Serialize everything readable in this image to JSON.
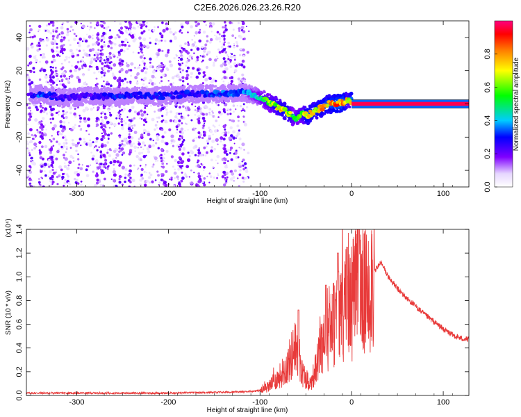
{
  "title": "C2E6.2026.026.23.26.R20",
  "chart_data": [
    {
      "type": "heatmap",
      "xlabel": "Height of straight line (km)",
      "ylabel": "Frequency (Hz)",
      "xlim": [
        -355,
        128
      ],
      "ylim": [
        -50,
        50
      ],
      "xticks": [
        -300,
        -200,
        -100,
        0,
        100
      ],
      "yticks": [
        -40,
        -20,
        0,
        20,
        40
      ],
      "noise_region_x": [
        -355,
        -112
      ],
      "ridge": [
        {
          "x": -350,
          "y": 5,
          "amp": 0.25
        },
        {
          "x": -340,
          "y": 6,
          "amp": 0.35
        },
        {
          "x": -330,
          "y": 5,
          "amp": 0.3
        },
        {
          "x": -320,
          "y": 4,
          "amp": 0.25
        },
        {
          "x": -300,
          "y": 4,
          "amp": 0.25
        },
        {
          "x": -280,
          "y": 5,
          "amp": 0.25
        },
        {
          "x": -260,
          "y": 4,
          "amp": 0.3
        },
        {
          "x": -240,
          "y": 5,
          "amp": 0.3
        },
        {
          "x": -220,
          "y": 5,
          "amp": 0.3
        },
        {
          "x": -200,
          "y": 5,
          "amp": 0.3
        },
        {
          "x": -180,
          "y": 6,
          "amp": 0.3
        },
        {
          "x": -160,
          "y": 6,
          "amp": 0.3
        },
        {
          "x": -140,
          "y": 6,
          "amp": 0.35
        },
        {
          "x": -120,
          "y": 7,
          "amp": 0.35
        },
        {
          "x": -110,
          "y": 6,
          "amp": 0.45
        },
        {
          "x": -100,
          "y": 4,
          "amp": 0.5
        },
        {
          "x": -90,
          "y": 1,
          "amp": 0.6
        },
        {
          "x": -80,
          "y": -2,
          "amp": 0.7
        },
        {
          "x": -70,
          "y": -5,
          "amp": 0.75
        },
        {
          "x": -62,
          "y": -9,
          "amp": 0.55
        },
        {
          "x": -55,
          "y": -6,
          "amp": 0.6
        },
        {
          "x": -48,
          "y": -7,
          "amp": 0.8
        },
        {
          "x": -40,
          "y": -4,
          "amp": 0.75
        },
        {
          "x": -32,
          "y": -2,
          "amp": 0.8
        },
        {
          "x": -25,
          "y": 0,
          "amp": 0.8
        },
        {
          "x": -15,
          "y": 0,
          "amp": 0.85
        },
        {
          "x": -8,
          "y": 1,
          "amp": 0.85
        },
        {
          "x": -3,
          "y": 3,
          "amp": 0.6
        },
        {
          "x": 0,
          "y": 1,
          "amp": 0.9
        }
      ],
      "constant_line": {
        "x_start": 0,
        "x_end": 128,
        "y": 0,
        "amp": 0.97
      },
      "colorbar": {
        "label": "Normalized spectral amplitude",
        "ticks": [
          "0.0",
          "0.2",
          "0.4",
          "0.6",
          "0.8"
        ],
        "tick_values": [
          0.0,
          0.2,
          0.4,
          0.6,
          0.8
        ],
        "range": [
          0,
          1
        ]
      }
    },
    {
      "type": "line",
      "xlabel": "Height of straight line (km)",
      "ylabel": "SNR (10 * v/v)",
      "y_multiplier": "(x10⁴)",
      "xlim": [
        -355,
        128
      ],
      "ylim": [
        0,
        1.4
      ],
      "xticks": [
        -300,
        -200,
        -100,
        0,
        100
      ],
      "yticks": [
        "0.0",
        "0.2",
        "0.4",
        "0.6",
        "0.8",
        "1.0",
        "1.2",
        "1.4"
      ],
      "ytick_values": [
        0,
        0.2,
        0.4,
        0.6,
        0.8,
        1.0,
        1.2,
        1.4
      ],
      "series": [
        {
          "color": "#e83a3a",
          "envelope": [
            {
              "x": -355,
              "y": 0.02
            },
            {
              "x": -300,
              "y": 0.02
            },
            {
              "x": -200,
              "y": 0.02
            },
            {
              "x": -120,
              "y": 0.03
            },
            {
              "x": -100,
              "y": 0.04
            },
            {
              "x": -90,
              "y": 0.08
            },
            {
              "x": -80,
              "y": 0.15
            },
            {
              "x": -70,
              "y": 0.25
            },
            {
              "x": -62,
              "y": 0.4
            },
            {
              "x": -55,
              "y": 0.2
            },
            {
              "x": -45,
              "y": 0.1
            },
            {
              "x": -38,
              "y": 0.25
            },
            {
              "x": -30,
              "y": 0.55
            },
            {
              "x": -20,
              "y": 0.6
            },
            {
              "x": -10,
              "y": 0.75
            },
            {
              "x": 0,
              "y": 0.8
            },
            {
              "x": 8,
              "y": 0.95
            },
            {
              "x": 15,
              "y": 0.85
            },
            {
              "x": 25,
              "y": 1.05
            },
            {
              "x": 32,
              "y": 1.12
            },
            {
              "x": 40,
              "y": 1.0
            },
            {
              "x": 50,
              "y": 0.9
            },
            {
              "x": 60,
              "y": 0.82
            },
            {
              "x": 70,
              "y": 0.75
            },
            {
              "x": 80,
              "y": 0.68
            },
            {
              "x": 90,
              "y": 0.62
            },
            {
              "x": 100,
              "y": 0.56
            },
            {
              "x": 110,
              "y": 0.51
            },
            {
              "x": 120,
              "y": 0.48
            },
            {
              "x": 128,
              "y": 0.47
            }
          ],
          "peaks": [
            {
              "x": -58,
              "y": 0.72
            },
            {
              "x": -28,
              "y": 0.93
            },
            {
              "x": -15,
              "y": 1.2
            },
            {
              "x": -5,
              "y": 1.25
            },
            {
              "x": 8,
              "y": 1.42
            }
          ]
        }
      ]
    }
  ]
}
